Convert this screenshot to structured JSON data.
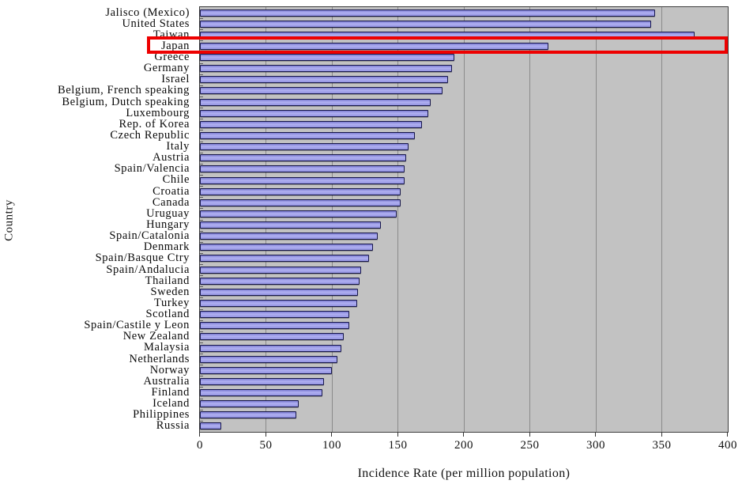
{
  "chart_data": {
    "type": "bar",
    "orientation": "horizontal",
    "title": "",
    "xlabel": "Incidence Rate (per million population)",
    "ylabel": "Country",
    "xlim": [
      0,
      400
    ],
    "xticks": [
      0,
      50,
      100,
      150,
      200,
      250,
      300,
      350,
      400
    ],
    "grid": true,
    "legend": "none",
    "categories": [
      "Jalisco (Mexico)",
      "United States",
      "Taiwan",
      "Japan",
      "Greece",
      "Germany",
      "Israel",
      "Belgium, French speaking",
      "Belgium, Dutch speaking",
      "Luxembourg",
      "Rep. of Korea",
      "Czech Republic",
      "Italy",
      "Austria",
      "Spain/Valencia",
      "Chile",
      "Croatia",
      "Canada",
      "Uruguay",
      "Hungary",
      "Spain/Catalonia",
      "Denmark",
      "Spain/Basque Ctry",
      "Spain/Andalucia",
      "Thailand",
      "Sweden",
      "Turkey",
      "Scotland",
      "Spain/Castile y Leon",
      "New Zealand",
      "Malaysia",
      "Netherlands",
      "Norway",
      "Australia",
      "Finland",
      "Iceland",
      "Philippines",
      "Russia"
    ],
    "values": [
      345,
      342,
      375,
      264,
      193,
      191,
      188,
      184,
      175,
      173,
      168,
      163,
      158,
      156,
      155,
      155,
      152,
      152,
      149,
      137,
      135,
      131,
      128,
      122,
      121,
      120,
      119,
      113,
      113,
      109,
      107,
      104,
      100,
      94,
      93,
      75,
      73,
      16
    ],
    "highlighted_category": "Japan",
    "colors": {
      "bar_fill": "#9b9beb",
      "bar_border": "#16164a",
      "plot_background": "#c2c2c2",
      "gridline": "#8a8a8a",
      "highlight_border": "#ee0000",
      "text": "#111111"
    }
  }
}
